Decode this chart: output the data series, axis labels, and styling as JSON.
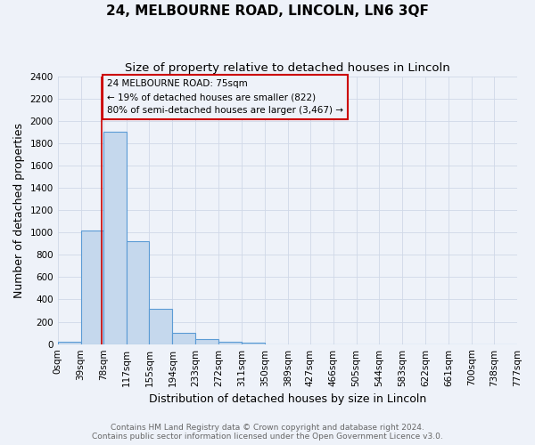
{
  "title": "24, MELBOURNE ROAD, LINCOLN, LN6 3QF",
  "subtitle": "Size of property relative to detached houses in Lincoln",
  "xlabel": "Distribution of detached houses by size in Lincoln",
  "ylabel": "Number of detached properties",
  "bar_values": [
    25,
    1020,
    1900,
    920,
    320,
    105,
    45,
    20,
    15,
    0,
    0,
    0,
    0,
    0,
    0,
    0,
    0,
    0,
    0,
    0
  ],
  "bin_edges": [
    0,
    39,
    78,
    117,
    155,
    194,
    233,
    272,
    311,
    350,
    389,
    427,
    466,
    505,
    544,
    583,
    622,
    661,
    700,
    738,
    777
  ],
  "tick_labels": [
    "0sqm",
    "39sqm",
    "78sqm",
    "117sqm",
    "155sqm",
    "194sqm",
    "233sqm",
    "272sqm",
    "311sqm",
    "350sqm",
    "389sqm",
    "427sqm",
    "466sqm",
    "505sqm",
    "544sqm",
    "583sqm",
    "622sqm",
    "661sqm",
    "700sqm",
    "738sqm",
    "777sqm"
  ],
  "ylim": [
    0,
    2400
  ],
  "yticks": [
    0,
    200,
    400,
    600,
    800,
    1000,
    1200,
    1400,
    1600,
    1800,
    2000,
    2200,
    2400
  ],
  "bar_color": "#c5d8ed",
  "bar_edge_color": "#5b9bd5",
  "bar_linewidth": 0.8,
  "red_line_x": 75,
  "annotation_line1": "24 MELBOURNE ROAD: 75sqm",
  "annotation_line2": "← 19% of detached houses are smaller (822)",
  "annotation_line3": "80% of semi-detached houses are larger (3,467) →",
  "footer_line1": "Contains HM Land Registry data © Crown copyright and database right 2024.",
  "footer_line2": "Contains public sector information licensed under the Open Government Licence v3.0.",
  "background_color": "#eef2f9",
  "grid_color": "#d0d8e8",
  "title_fontsize": 11,
  "subtitle_fontsize": 9.5,
  "axis_label_fontsize": 9,
  "tick_fontsize": 7.5,
  "footer_fontsize": 6.5
}
